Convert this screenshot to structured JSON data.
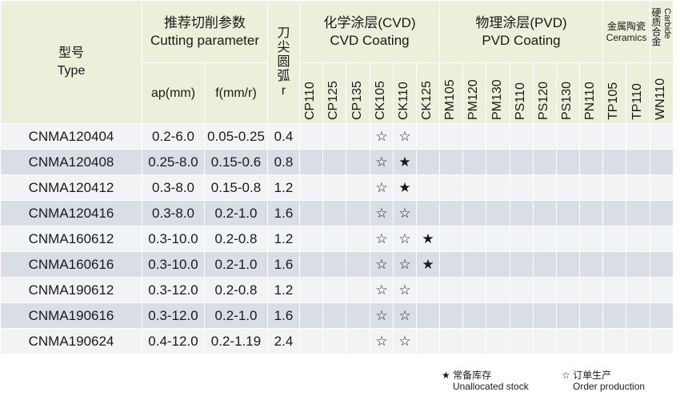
{
  "header": {
    "type_cn": "型号",
    "type_en": "Type",
    "cutting_cn": "推荐切削参数",
    "cutting_en": "Cutting parameter",
    "ap": "ap(mm)",
    "f": "f(mm/r)",
    "radius_cn": [
      "刀",
      "尖",
      "圆",
      "弧"
    ],
    "radius_sym": "r",
    "cvd_cn": "化学涂层(CVD)",
    "cvd_en": "CVD Coating",
    "pvd_cn": "物理涂层(PVD)",
    "pvd_en": "PVD Coating",
    "cer_cn": "金属陶瓷",
    "cer_en": "Ceramics",
    "carb_cn": [
      "硬",
      "质",
      "合",
      "金"
    ],
    "carb_en": "Carbide"
  },
  "grades": [
    "CP110",
    "CP125",
    "CP135",
    "CK105",
    "CK110",
    "CK125",
    "PM105",
    "PM120",
    "PM130",
    "PS110",
    "PS120",
    "PS130",
    "PN110",
    "TP105",
    "TP110",
    "WN110"
  ],
  "rows": [
    {
      "type": "CNMA120404",
      "ap": "0.2-6.0",
      "f": "0.05-0.25",
      "r": "0.4",
      "marks": [
        "",
        "",
        "",
        "☆",
        "☆",
        "",
        "",
        "",
        "",
        "",
        "",
        "",
        "",
        "",
        "",
        ""
      ]
    },
    {
      "type": "CNMA120408",
      "ap": "0.25-8.0",
      "f": "0.15-0.6",
      "r": "0.8",
      "marks": [
        "",
        "",
        "",
        "☆",
        "★",
        "",
        "",
        "",
        "",
        "",
        "",
        "",
        "",
        "",
        "",
        ""
      ]
    },
    {
      "type": "CNMA120412",
      "ap": "0.3-8.0",
      "f": "0.15-0.8",
      "r": "1.2",
      "marks": [
        "",
        "",
        "",
        "☆",
        "★",
        "",
        "",
        "",
        "",
        "",
        "",
        "",
        "",
        "",
        "",
        ""
      ]
    },
    {
      "type": "CNMA120416",
      "ap": "0.3-8.0",
      "f": "0.2-1.0",
      "r": "1.6",
      "marks": [
        "",
        "",
        "",
        "☆",
        "☆",
        "",
        "",
        "",
        "",
        "",
        "",
        "",
        "",
        "",
        "",
        ""
      ]
    },
    {
      "type": "CNMA160612",
      "ap": "0.3-10.0",
      "f": "0.2-0.8",
      "r": "1.2",
      "marks": [
        "",
        "",
        "",
        "☆",
        "☆",
        "★",
        "",
        "",
        "",
        "",
        "",
        "",
        "",
        "",
        "",
        ""
      ]
    },
    {
      "type": "CNMA160616",
      "ap": "0.3-10.0",
      "f": "0.2-1.0",
      "r": "1.6",
      "marks": [
        "",
        "",
        "",
        "☆",
        "☆",
        "★",
        "",
        "",
        "",
        "",
        "",
        "",
        "",
        "",
        "",
        ""
      ]
    },
    {
      "type": "CNMA190612",
      "ap": "0.3-12.0",
      "f": "0.2-0.8",
      "r": "1.2",
      "marks": [
        "",
        "",
        "",
        "☆",
        "☆",
        "",
        "",
        "",
        "",
        "",
        "",
        "",
        "",
        "",
        "",
        ""
      ]
    },
    {
      "type": "CNMA190616",
      "ap": "0.3-12.0",
      "f": "0.2-1.0",
      "r": "1.6",
      "marks": [
        "",
        "",
        "",
        "☆",
        "☆",
        "",
        "",
        "",
        "",
        "",
        "",
        "",
        "",
        "",
        "",
        ""
      ]
    },
    {
      "type": "CNMA190624",
      "ap": "0.4-12.0",
      "f": "0.2-1.19",
      "r": "2.4",
      "marks": [
        "",
        "",
        "",
        "☆",
        "☆",
        "",
        "",
        "",
        "",
        "",
        "",
        "",
        "",
        "",
        "",
        ""
      ]
    }
  ],
  "legend": {
    "stock_symbol": "★",
    "stock_cn": "常备库存",
    "stock_en": "Unallocated stock",
    "order_symbol": "☆",
    "order_cn": "订单生产",
    "order_en": "Order production"
  }
}
